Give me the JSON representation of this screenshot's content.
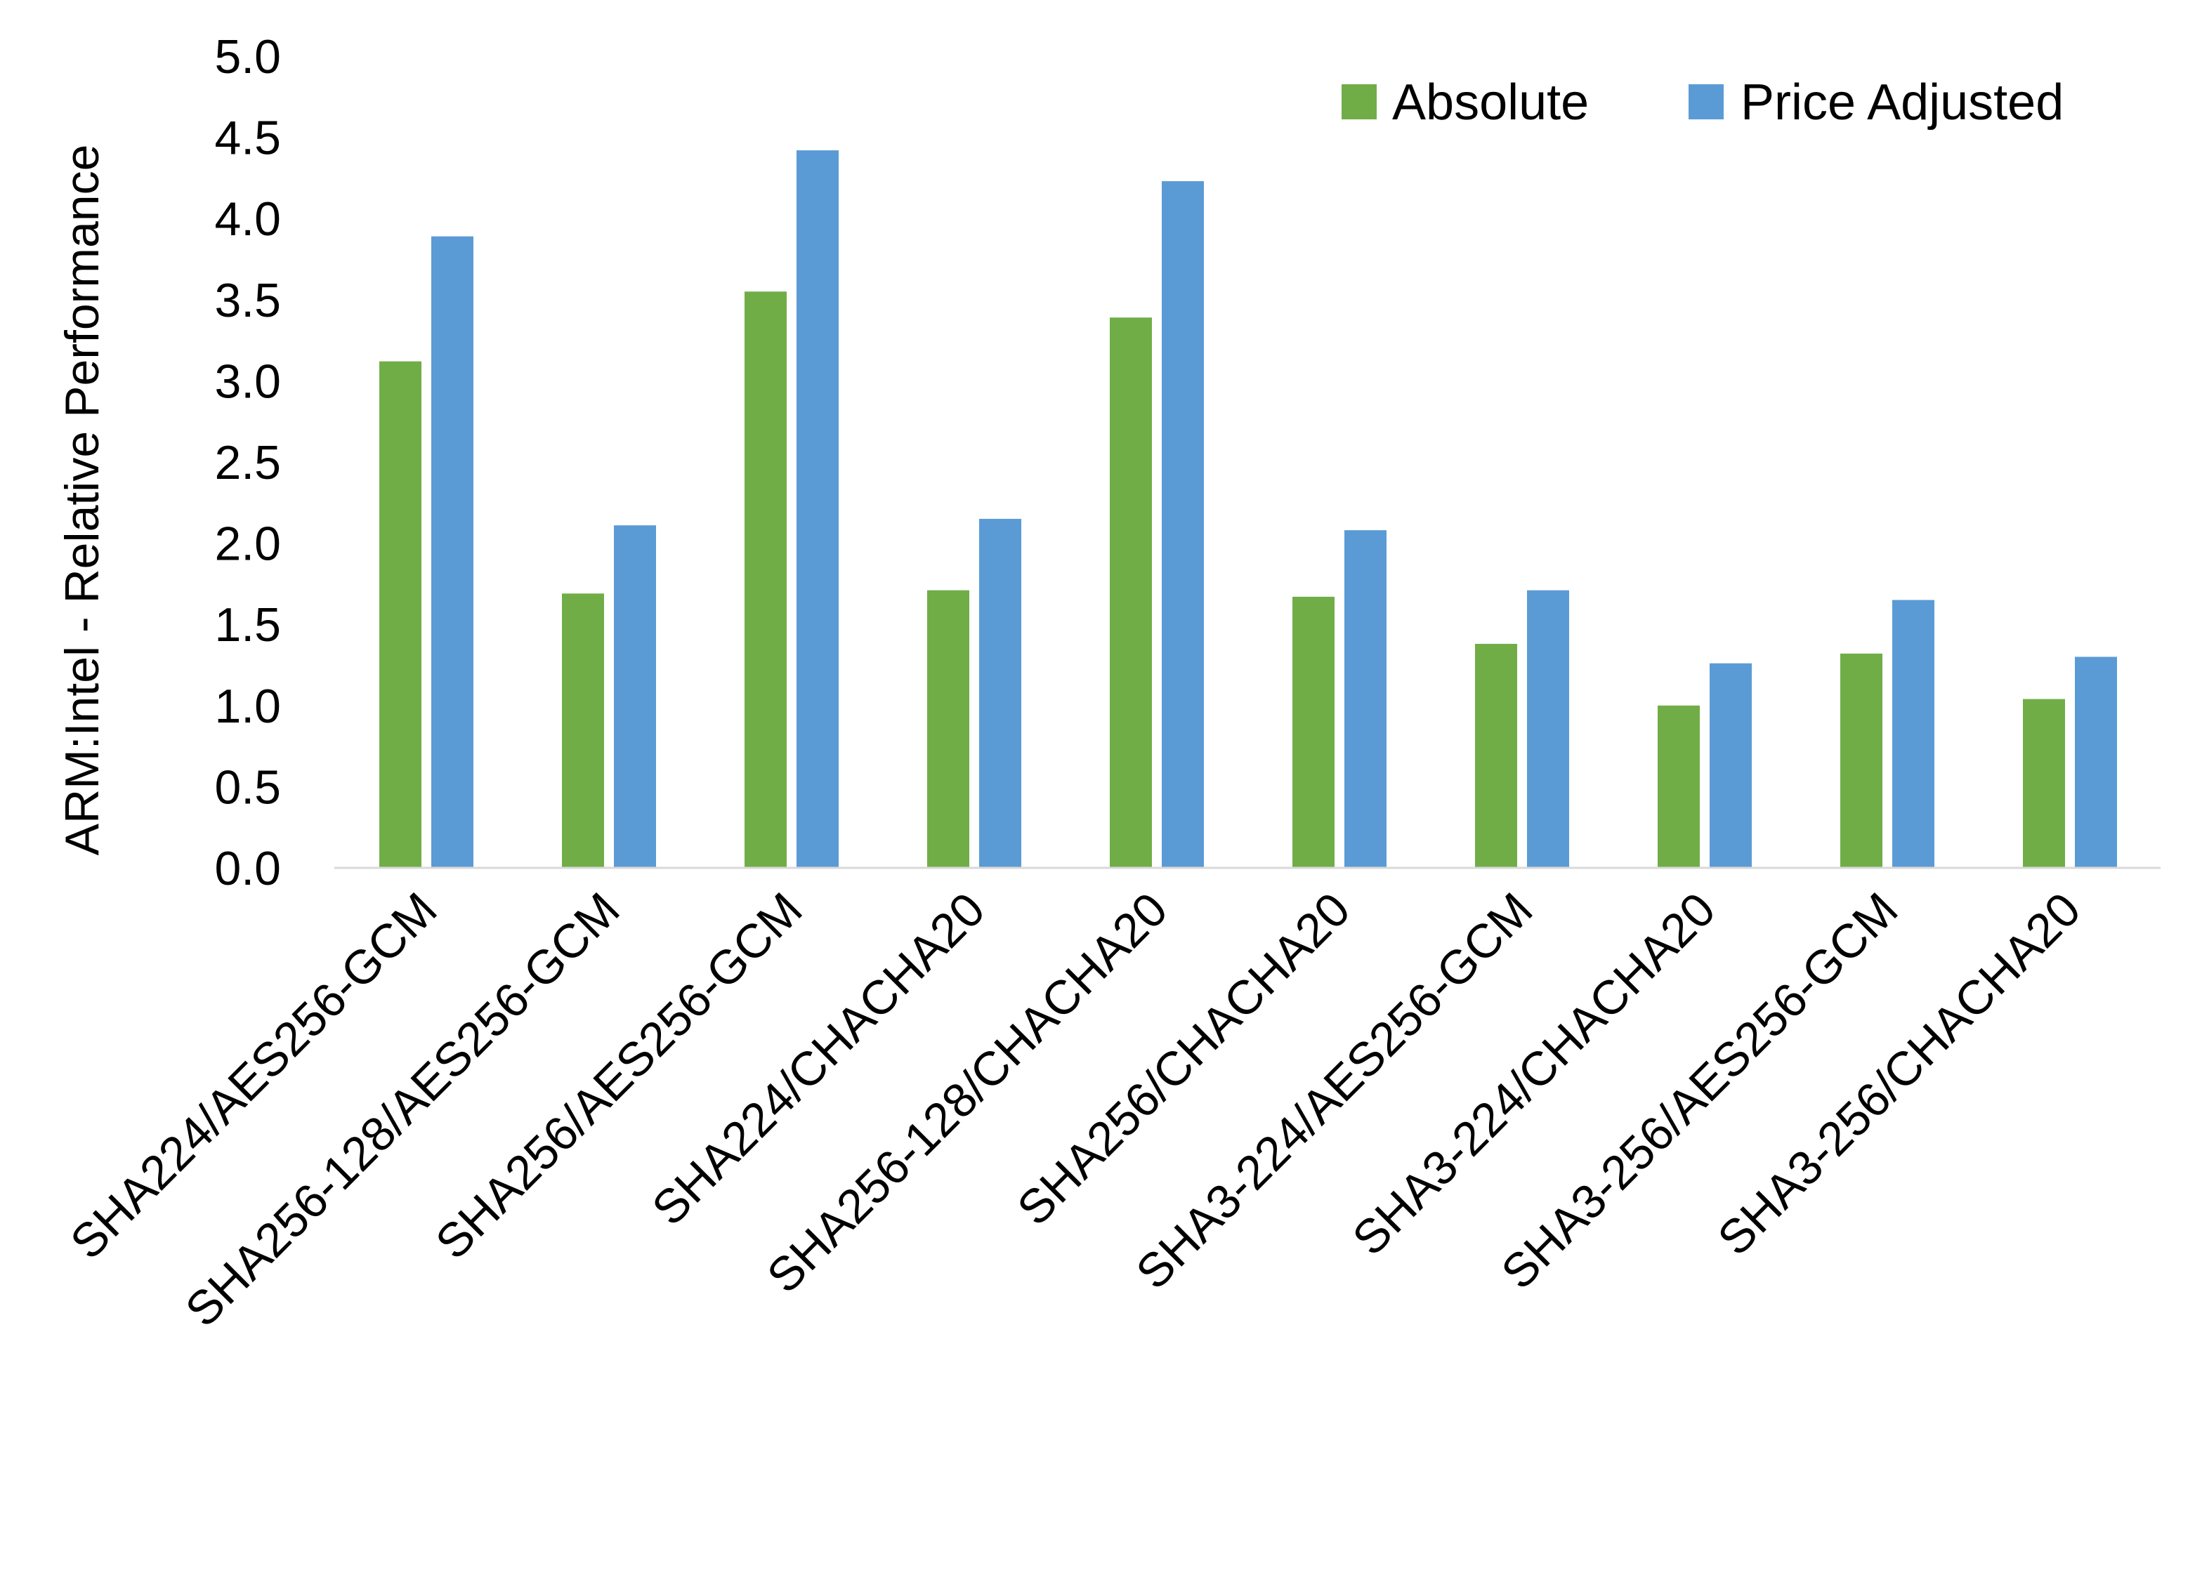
{
  "chart_data": {
    "type": "bar",
    "title": "",
    "xlabel": "",
    "ylabel": "ARM:Intel - Relative Performance",
    "ylim": [
      0,
      5
    ],
    "yticks": [
      "0.0",
      "0.5",
      "1.0",
      "1.5",
      "2.0",
      "2.5",
      "3.0",
      "3.5",
      "4.0",
      "4.5",
      "5.0"
    ],
    "grid": false,
    "legend_position": "top-right",
    "categories": [
      "SHA224/AES256-GCM",
      "SHA256-128/AES256-GCM",
      "SHA256/AES256-GCM",
      "SHA224/CHACHA20",
      "SHA256-128/CHACHA20",
      "SHA256/CHACHA20",
      "SHA3-224/AES256-GCM",
      "SHA3-224/CHACHA20",
      "SHA3-256/AES256-GCM",
      "SHA3-256/CHACHA20"
    ],
    "series": [
      {
        "name": "Absolute",
        "color": "#70AD47",
        "values": [
          3.12,
          1.69,
          3.55,
          1.71,
          3.39,
          1.67,
          1.38,
          1.0,
          1.32,
          1.04
        ]
      },
      {
        "name": "Price Adjusted",
        "color": "#5B9BD5",
        "values": [
          3.89,
          2.11,
          4.42,
          2.15,
          4.23,
          2.08,
          1.71,
          1.26,
          1.65,
          1.3
        ]
      }
    ]
  }
}
